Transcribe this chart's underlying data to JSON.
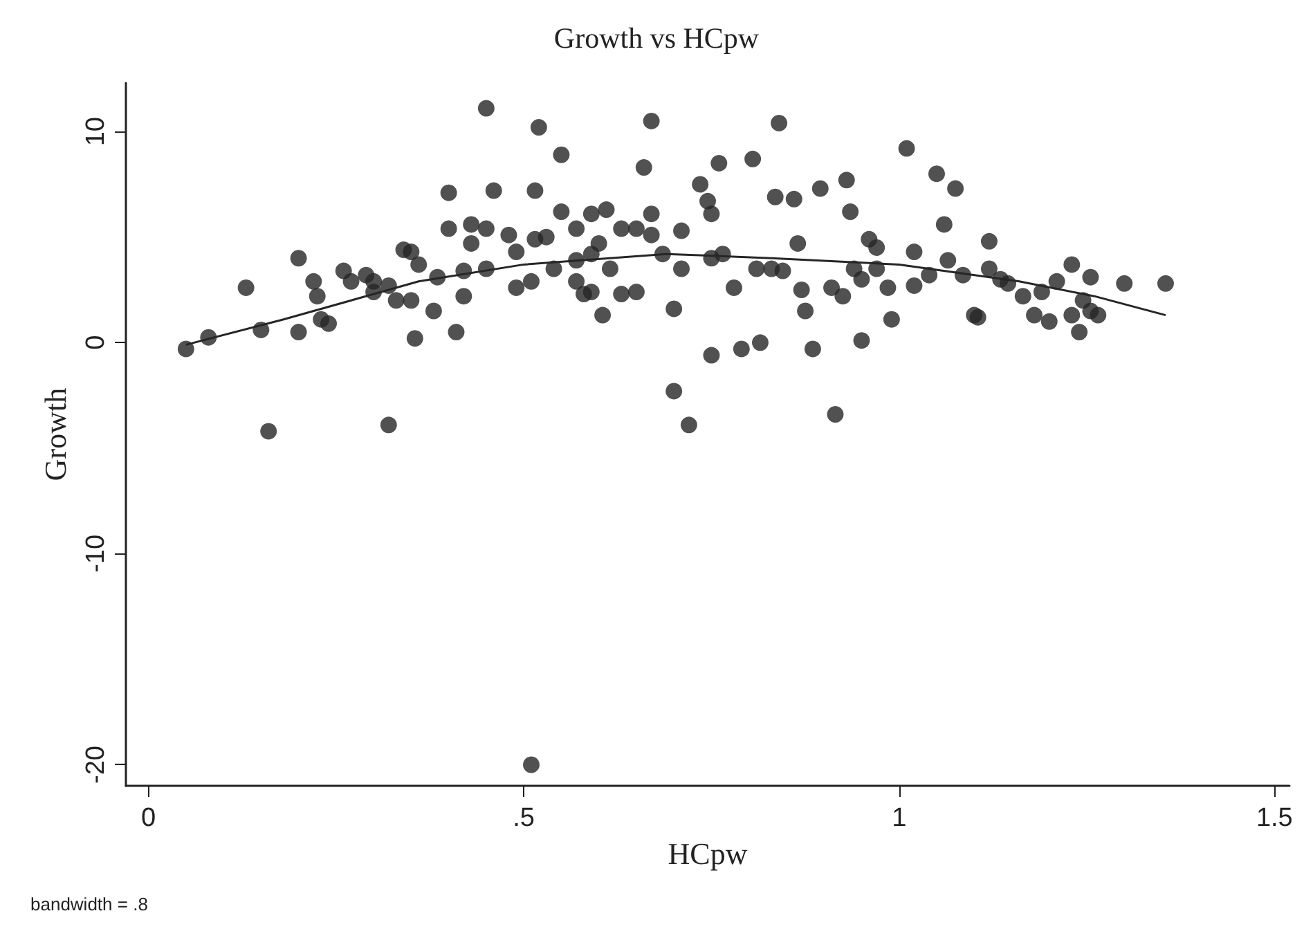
{
  "chart_data": {
    "type": "scatter",
    "title": "Growth vs HCpw",
    "xlabel": "HCpw",
    "ylabel": "Growth",
    "annotations": [
      "bandwidth = .8"
    ],
    "xlim": [
      -0.03,
      1.52
    ],
    "ylim": [
      -21,
      12.3
    ],
    "xticks": [
      0,
      {
        "value": 0.5,
        "label": ".5"
      },
      1,
      1.5
    ],
    "yticks": [
      -20,
      -10,
      0,
      10
    ],
    "grid": false,
    "marker": "circle",
    "series": [
      {
        "color": "#262626",
        "x": [
          0.05,
          0.08,
          0.13,
          0.15,
          0.16,
          0.2,
          0.2,
          0.22,
          0.225,
          0.23,
          0.24,
          0.26,
          0.27,
          0.29,
          0.3,
          0.3,
          0.32,
          0.32,
          0.33,
          0.34,
          0.35,
          0.355,
          0.35,
          0.36,
          0.38,
          0.385,
          0.4,
          0.4,
          0.41,
          0.42,
          0.42,
          0.43,
          0.43,
          0.46,
          0.45,
          0.45,
          0.45,
          0.48,
          0.49,
          0.49,
          0.52,
          0.515,
          0.515,
          0.51,
          0.53,
          0.54,
          0.55,
          0.55,
          0.57,
          0.57,
          0.57,
          0.58,
          0.59,
          0.59,
          0.59,
          0.6,
          0.605,
          0.61,
          0.615,
          0.63,
          0.63,
          0.65,
          0.65,
          0.67,
          0.66,
          0.67,
          0.67,
          0.685,
          0.7,
          0.7,
          0.71,
          0.71,
          0.72,
          0.735,
          0.745,
          0.75,
          0.75,
          0.75,
          0.76,
          0.765,
          0.78,
          0.79,
          0.805,
          0.81,
          0.815,
          0.83,
          0.835,
          0.84,
          0.845,
          0.86,
          0.865,
          0.87,
          0.875,
          0.885,
          0.895,
          0.915,
          0.91,
          0.925,
          0.93,
          0.935,
          0.94,
          0.95,
          0.95,
          0.96,
          0.97,
          0.97,
          0.985,
          0.99,
          1.01,
          1.02,
          1.02,
          1.04,
          1.05,
          1.06,
          1.065,
          1.075,
          1.085,
          1.1,
          1.105,
          1.12,
          1.12,
          1.135,
          1.145,
          1.165,
          1.18,
          1.19,
          1.2,
          1.21,
          1.23,
          1.24,
          1.23,
          1.245,
          1.255,
          1.255,
          1.265,
          1.3,
          1.355,
          0.51
        ],
        "values": [
          -0.3,
          0.25,
          2.6,
          0.6,
          -4.2,
          4.0,
          0.5,
          2.9,
          2.2,
          1.1,
          0.9,
          3.4,
          2.9,
          3.2,
          2.9,
          2.4,
          2.7,
          -3.9,
          2.0,
          4.4,
          4.3,
          0.2,
          2.0,
          3.7,
          1.5,
          3.1,
          7.1,
          5.4,
          0.5,
          2.2,
          3.4,
          5.6,
          4.7,
          7.2,
          3.5,
          5.4,
          11.1,
          5.1,
          4.3,
          2.6,
          10.2,
          7.2,
          4.9,
          2.9,
          5.0,
          3.5,
          8.9,
          6.2,
          5.4,
          3.9,
          2.9,
          2.3,
          6.1,
          4.2,
          2.4,
          4.7,
          1.3,
          6.3,
          3.5,
          5.4,
          2.3,
          5.4,
          2.4,
          5.1,
          8.3,
          10.5,
          6.1,
          4.2,
          -2.3,
          1.6,
          5.3,
          3.5,
          -3.9,
          7.5,
          6.7,
          6.1,
          4.0,
          -0.6,
          8.5,
          4.2,
          2.6,
          -0.3,
          8.7,
          3.5,
          0,
          3.5,
          6.9,
          10.4,
          3.4,
          6.8,
          4.7,
          2.5,
          1.5,
          -0.3,
          7.3,
          -3.4,
          2.6,
          2.2,
          7.7,
          6.2,
          3.5,
          0.1,
          3.0,
          4.9,
          4.5,
          3.5,
          2.6,
          1.1,
          9.2,
          4.3,
          2.7,
          3.2,
          8.0,
          5.6,
          3.9,
          7.3,
          3.2,
          1.3,
          1.2,
          4.8,
          3.5,
          3.0,
          2.8,
          2.2,
          1.3,
          2.4,
          1.0,
          2.9,
          3.7,
          0.5,
          1.3,
          2.0,
          1.5,
          3.1,
          1.3,
          2.8,
          2.8,
          -20
        ]
      },
      {
        "type": "line",
        "color": "#262626",
        "marker": "none",
        "line_style": "solid",
        "x": [
          0.05,
          0.18,
          0.36,
          0.5,
          0.69,
          0.83,
          1.0,
          1.16,
          1.26,
          1.355
        ],
        "values": [
          -0.1,
          1.1,
          2.9,
          3.7,
          4.2,
          4.0,
          3.7,
          2.9,
          2.2,
          1.3
        ]
      }
    ]
  }
}
